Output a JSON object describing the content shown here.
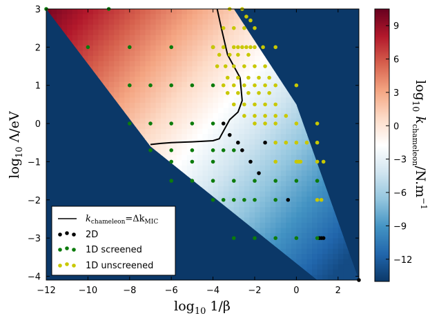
{
  "chart_data": {
    "type": "scatter",
    "x_axis": {
      "label_main": "log",
      "label_sub": "10",
      "label_rest": " 1/β",
      "range": [
        -12,
        3
      ],
      "ticks": [
        -12,
        -10,
        -8,
        -6,
        -4,
        -2,
        0,
        2
      ]
    },
    "y_axis": {
      "label_main": "log",
      "label_sub": "10",
      "label_rest": " Λ/eV",
      "range": [
        -4.1,
        3
      ],
      "ticks": [
        -4,
        -3,
        -2,
        -1,
        0,
        1,
        2,
        3
      ]
    },
    "colorbar": {
      "label": {
        "pre": "log",
        "sub1": "10",
        "mid": " k",
        "sub2": "chameleon",
        "post": "/N.m",
        "sup": "−1"
      },
      "range": [
        -14,
        10.5
      ],
      "ticks": [
        -12,
        -9,
        -6,
        -3,
        0,
        3,
        6,
        9
      ],
      "colormap": [
        "#0b3868",
        "#2166ac",
        "#4393c3",
        "#92c5de",
        "#d1e5f0",
        "#ffffff",
        "#fddbc7",
        "#f4a582",
        "#d6604d",
        "#b2182b",
        "#67001f"
      ]
    },
    "heatmap_region": [
      [
        -12,
        3
      ],
      [
        -3,
        3
      ],
      [
        0,
        0.5
      ],
      [
        3,
        -4.1
      ],
      [
        1,
        -4.1
      ],
      [
        -7,
        -0.6
      ]
    ],
    "heatmap_model": {
      "value_at_top_left": 10,
      "value_at_bottom_right": -13
    },
    "contour": {
      "name": "k_chameleon = Δk_MIC",
      "x": [
        -7,
        -6.5,
        -6,
        -5,
        -4,
        -3.7,
        -3.2,
        -2.8,
        -2.6,
        -2.7,
        -3.3,
        -3.6,
        -3.8
      ],
      "y": [
        -0.55,
        -0.52,
        -0.5,
        -0.48,
        -0.45,
        -0.4,
        0.1,
        0.3,
        0.6,
        1.2,
        1.8,
        2.5,
        3.0
      ]
    },
    "series": [
      {
        "name": "2D",
        "color": "#000000",
        "points": [
          [
            -3.5,
            0
          ],
          [
            -3.2,
            -0.3
          ],
          [
            -2.8,
            -0.5
          ],
          [
            -2.6,
            -0.7
          ],
          [
            -2.2,
            -1.0
          ],
          [
            -1.8,
            -1.3
          ],
          [
            -1.5,
            -0.5
          ],
          [
            -0.4,
            -2.0
          ],
          [
            1.1,
            -3.0
          ],
          [
            1.2,
            -3.0
          ],
          [
            1.3,
            -3.0
          ],
          [
            3.0,
            -4.1
          ]
        ]
      },
      {
        "name": "1D screened",
        "color": "#0c7b0c",
        "points": [
          [
            -12,
            3
          ],
          [
            -9,
            3
          ],
          [
            -10,
            2
          ],
          [
            -8,
            2
          ],
          [
            -6,
            2
          ],
          [
            -4,
            2
          ],
          [
            -8,
            1
          ],
          [
            -7,
            1
          ],
          [
            -6,
            1
          ],
          [
            -5,
            1
          ],
          [
            -4,
            1
          ],
          [
            -8,
            0
          ],
          [
            -7,
            0
          ],
          [
            -6,
            0
          ],
          [
            -5,
            0
          ],
          [
            -4,
            0
          ],
          [
            -7,
            -0.7
          ],
          [
            -6,
            -0.7
          ],
          [
            -5,
            -0.7
          ],
          [
            -4,
            -0.7
          ],
          [
            -3.5,
            -0.7
          ],
          [
            -3,
            -0.7
          ],
          [
            -6,
            -1
          ],
          [
            -5,
            -1
          ],
          [
            -4,
            -1
          ],
          [
            -6,
            -1.5
          ],
          [
            -5,
            -1.5
          ],
          [
            -4,
            -1.5
          ],
          [
            -3,
            -1.5
          ],
          [
            -2,
            -1.5
          ],
          [
            -1,
            -1.5
          ],
          [
            0,
            -1.5
          ],
          [
            1,
            -1.5
          ],
          [
            -4,
            -2
          ],
          [
            -3.5,
            -2
          ],
          [
            -3,
            -2
          ],
          [
            -2.5,
            -2
          ],
          [
            -2,
            -2
          ],
          [
            -1,
            -2
          ],
          [
            -3,
            -3
          ],
          [
            -2,
            -3
          ],
          [
            -1,
            -3
          ],
          [
            0,
            -3
          ],
          [
            1,
            -3
          ]
        ]
      },
      {
        "name": "1D unscreened",
        "color": "#c8c800",
        "points": [
          [
            -3.2,
            3
          ],
          [
            -2.6,
            3
          ],
          [
            -2.4,
            2.8
          ],
          [
            -2.2,
            2.7
          ],
          [
            -3.5,
            2.5
          ],
          [
            -3,
            2.5
          ],
          [
            -2.5,
            2.5
          ],
          [
            -2,
            2.5
          ],
          [
            -4,
            2
          ],
          [
            -3.5,
            2
          ],
          [
            -3,
            2
          ],
          [
            -2.8,
            2
          ],
          [
            -2.6,
            2
          ],
          [
            -2.4,
            2
          ],
          [
            -2.2,
            2
          ],
          [
            -2,
            2
          ],
          [
            -1.6,
            2
          ],
          [
            -1,
            2
          ],
          [
            -3.7,
            1.8
          ],
          [
            -3.2,
            1.8
          ],
          [
            -2.8,
            1.8
          ],
          [
            -2.3,
            1.8
          ],
          [
            -3.8,
            1.5
          ],
          [
            -3.4,
            1.5
          ],
          [
            -3,
            1.5
          ],
          [
            -2.5,
            1.5
          ],
          [
            -2,
            1.5
          ],
          [
            -1.5,
            1.5
          ],
          [
            -3.3,
            1.2
          ],
          [
            -2.8,
            1.2
          ],
          [
            -2.3,
            1.2
          ],
          [
            -1.8,
            1.2
          ],
          [
            -1.3,
            1.2
          ],
          [
            -3.5,
            1
          ],
          [
            -3,
            1
          ],
          [
            -2.5,
            1
          ],
          [
            -2,
            1
          ],
          [
            -1.5,
            1
          ],
          [
            -1,
            1
          ],
          [
            0,
            1
          ],
          [
            -3.3,
            0.8
          ],
          [
            -2.8,
            0.8
          ],
          [
            -2.3,
            0.8
          ],
          [
            -1.8,
            0.8
          ],
          [
            -1.3,
            0.8
          ],
          [
            -3,
            0.5
          ],
          [
            -2.5,
            0.5
          ],
          [
            -2,
            0.5
          ],
          [
            -1.5,
            0.5
          ],
          [
            -1,
            0.5
          ],
          [
            -2.5,
            0.2
          ],
          [
            -2,
            0.2
          ],
          [
            -1.5,
            0.2
          ],
          [
            -1,
            0.2
          ],
          [
            -0.5,
            0.2
          ],
          [
            -2,
            0
          ],
          [
            -1.5,
            0
          ],
          [
            -1,
            0
          ],
          [
            0,
            0
          ],
          [
            1,
            0
          ],
          [
            -1,
            -0.5
          ],
          [
            -0.5,
            -0.5
          ],
          [
            0,
            -0.5
          ],
          [
            0.5,
            -0.5
          ],
          [
            1,
            -0.5
          ],
          [
            -1,
            -1
          ],
          [
            0,
            -1
          ],
          [
            0.1,
            -1
          ],
          [
            0.2,
            -1
          ],
          [
            1,
            -1
          ],
          [
            1.3,
            -1
          ],
          [
            1,
            -2
          ],
          [
            1.2,
            -2
          ]
        ]
      }
    ],
    "legend": {
      "position": "bottom-left",
      "entries": [
        {
          "kind": "line",
          "label": {
            "pre": "k",
            "sub1": "chameleon",
            "mid": "=Δk",
            "sub2": "MIC"
          },
          "color": "#000000"
        },
        {
          "kind": "dots",
          "label": "2D",
          "color": "#000000"
        },
        {
          "kind": "dots",
          "label": "1D screened",
          "color": "#0c7b0c"
        },
        {
          "kind": "dots",
          "label": "1D unscreened",
          "color": "#c8c800"
        }
      ]
    }
  },
  "colors": {
    "background": "#0b3868",
    "frame": "#000000"
  }
}
